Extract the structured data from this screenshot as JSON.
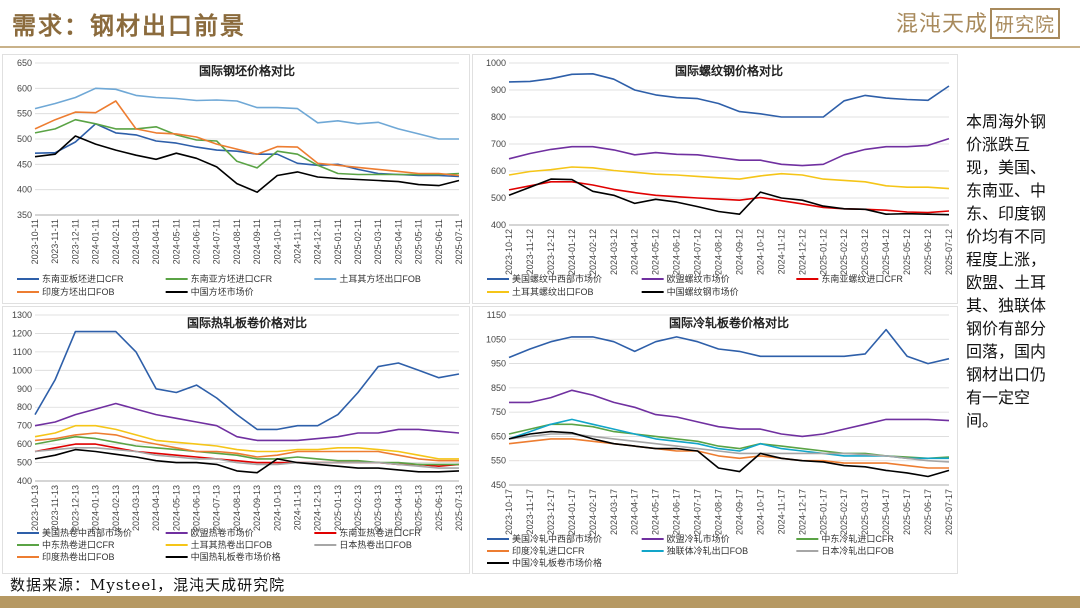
{
  "header": {
    "title": "需求：钢材出口前景",
    "logo_main": "混沌天成",
    "logo_boxed": "研究院"
  },
  "side_note": "本周海外钢价涨跌互现，美国、东南亚、中东、印度钢价均有不同程度上涨，欧盟、土耳其、独联体钢价有部分回落，国内钢材出口仍有一定空间。",
  "source": "数据来源：Mysteel，混沌天成研究院",
  "chart_data": [
    {
      "type": "line",
      "title": "国际钢坯价格对比",
      "ylim": [
        350,
        650
      ],
      "yticks": [
        350,
        400,
        450,
        500,
        550,
        600,
        650
      ],
      "xticks": [
        "2023-10-11",
        "2023-11-11",
        "2023-12-11",
        "2024-01-11",
        "2024-02-11",
        "2024-03-11",
        "2024-04-11",
        "2024-05-11",
        "2024-06-11",
        "2024-07-11",
        "2024-08-11",
        "2024-09-11",
        "2024-10-11",
        "2024-11-11",
        "2024-12-11",
        "2025-01-11",
        "2025-02-11",
        "2025-03-11",
        "2025-04-11",
        "2025-05-11",
        "2025-06-11",
        "2025-07-11"
      ],
      "grid": true,
      "legend_position": "bottom",
      "series": [
        {
          "name": "东南亚板坯进口CFR",
          "color": "#2e5fa9",
          "values": [
            472,
            473,
            494,
            530,
            512,
            508,
            496,
            492,
            484,
            478,
            476,
            470,
            470,
            452,
            448,
            450,
            440,
            432,
            430,
            428,
            428,
            426
          ]
        },
        {
          "name": "东南亚方坯进口CFR",
          "color": "#5aa345",
          "values": [
            512,
            520,
            538,
            530,
            520,
            520,
            524,
            508,
            498,
            496,
            456,
            443,
            476,
            470,
            448,
            432,
            430,
            430,
            430,
            430,
            430,
            432
          ]
        },
        {
          "name": "土耳其方坯出口FOB",
          "color": "#6fa8d6",
          "values": [
            560,
            570,
            582,
            600,
            598,
            586,
            582,
            580,
            576,
            577,
            575,
            562,
            562,
            560,
            532,
            536,
            530,
            533,
            520,
            510,
            500,
            500
          ]
        },
        {
          "name": "印度方坯出口FOB",
          "color": "#ed7d31",
          "values": [
            520,
            538,
            553,
            552,
            575,
            520,
            512,
            510,
            504,
            490,
            480,
            470,
            485,
            484,
            452,
            448,
            444,
            440,
            436,
            432,
            432,
            428
          ]
        },
        {
          "name": "中国方坯市场价",
          "color": "#000000",
          "values": [
            465,
            470,
            506,
            490,
            478,
            468,
            460,
            472,
            462,
            445,
            412,
            395,
            428,
            435,
            425,
            422,
            420,
            418,
            416,
            410,
            408,
            418
          ]
        }
      ]
    },
    {
      "type": "line",
      "title": "国际螺纹钢价格对比",
      "ylim": [
        400,
        1000
      ],
      "yticks": [
        400,
        500,
        600,
        700,
        800,
        900,
        1000
      ],
      "xticks": [
        "2023-10-12",
        "2023-11-12",
        "2023-12-12",
        "2024-01-12",
        "2024-02-12",
        "2024-03-12",
        "2024-04-12",
        "2024-05-12",
        "2024-06-12",
        "2024-07-12",
        "2024-08-12",
        "2024-09-12",
        "2024-10-12",
        "2024-11-12",
        "2024-12-12",
        "2025-01-12",
        "2025-02-12",
        "2025-03-12",
        "2025-04-12",
        "2025-05-12",
        "2025-06-12",
        "2025-07-12"
      ],
      "grid": true,
      "legend_position": "bottom",
      "series": [
        {
          "name": "美国螺纹中西部市场价",
          "color": "#2e5fa9",
          "values": [
            930,
            932,
            942,
            958,
            960,
            940,
            900,
            882,
            872,
            868,
            850,
            820,
            812,
            800,
            800,
            800,
            860,
            880,
            870,
            865,
            862,
            915
          ]
        },
        {
          "name": "欧盟螺纹市场价",
          "color": "#7030a0",
          "values": [
            645,
            665,
            680,
            690,
            690,
            678,
            660,
            668,
            662,
            660,
            650,
            640,
            640,
            625,
            620,
            625,
            660,
            680,
            690,
            690,
            695,
            720
          ]
        },
        {
          "name": "东南亚螺纹进口CFR",
          "color": "#e00000",
          "values": [
            530,
            545,
            560,
            560,
            548,
            532,
            520,
            510,
            505,
            500,
            496,
            492,
            502,
            490,
            478,
            465,
            460,
            458,
            455,
            448,
            446,
            452
          ]
        },
        {
          "name": "土耳其螺纹出口FOB",
          "color": "#f5c518",
          "values": [
            585,
            598,
            605,
            615,
            612,
            602,
            595,
            588,
            585,
            580,
            575,
            570,
            582,
            590,
            585,
            570,
            565,
            560,
            545,
            540,
            540,
            535
          ]
        },
        {
          "name": "中国螺纹钢市场价",
          "color": "#000000",
          "values": [
            510,
            540,
            570,
            568,
            525,
            510,
            480,
            495,
            485,
            468,
            450,
            440,
            522,
            500,
            492,
            470,
            460,
            458,
            440,
            442,
            440,
            438
          ]
        }
      ]
    },
    {
      "type": "line",
      "title": "国际热轧板卷价格对比",
      "ylim": [
        400,
        1300
      ],
      "yticks": [
        400,
        500,
        600,
        700,
        800,
        900,
        1000,
        1100,
        1200,
        1300
      ],
      "xticks": [
        "2023-10-13",
        "2023-11-13",
        "2023-12-13",
        "2024-01-13",
        "2024-02-13",
        "2024-03-13",
        "2024-04-13",
        "2024-05-13",
        "2024-06-13",
        "2024-07-13",
        "2024-08-13",
        "2024-09-13",
        "2024-10-13",
        "2024-11-13",
        "2024-12-13",
        "2025-01-13",
        "2025-02-13",
        "2025-03-13",
        "2025-04-13",
        "2025-05-13",
        "2025-06-13",
        "2025-07-13"
      ],
      "grid": true,
      "legend_position": "bottom",
      "series": [
        {
          "name": "美国热卷中西部市场价",
          "color": "#2e5fa9",
          "values": [
            760,
            950,
            1210,
            1210,
            1210,
            1100,
            900,
            880,
            920,
            850,
            760,
            680,
            680,
            700,
            700,
            760,
            880,
            1020,
            1040,
            1000,
            960,
            980
          ]
        },
        {
          "name": "欧盟热卷市场价",
          "color": "#7030a0",
          "values": [
            700,
            720,
            760,
            790,
            820,
            790,
            760,
            740,
            720,
            700,
            640,
            620,
            620,
            620,
            630,
            640,
            660,
            660,
            680,
            680,
            670,
            660
          ]
        },
        {
          "name": "东南亚热卷进口CFR",
          "color": "#e00000",
          "values": [
            560,
            580,
            600,
            600,
            580,
            560,
            550,
            540,
            530,
            520,
            510,
            500,
            500,
            500,
            500,
            500,
            500,
            500,
            490,
            490,
            480,
            490
          ]
        },
        {
          "name": "中东热卷进口CFR",
          "color": "#5aa345",
          "values": [
            600,
            620,
            640,
            630,
            610,
            590,
            580,
            570,
            560,
            550,
            540,
            520,
            520,
            530,
            520,
            510,
            510,
            500,
            500,
            490,
            490,
            490
          ]
        },
        {
          "name": "土耳其热卷出口FOB",
          "color": "#f5c518",
          "values": [
            640,
            660,
            700,
            700,
            680,
            650,
            620,
            610,
            600,
            590,
            570,
            560,
            560,
            570,
            570,
            580,
            580,
            570,
            560,
            540,
            520,
            520
          ]
        },
        {
          "name": "日本热卷出口FOB",
          "color": "#a6a6a6",
          "values": [
            560,
            570,
            580,
            580,
            570,
            560,
            540,
            530,
            520,
            520,
            500,
            490,
            490,
            500,
            500,
            500,
            500,
            500,
            490,
            480,
            470,
            470
          ]
        },
        {
          "name": "印度热卷出口FOB",
          "color": "#ed7d31",
          "values": [
            620,
            630,
            650,
            660,
            650,
            620,
            600,
            580,
            560,
            560,
            550,
            530,
            540,
            560,
            560,
            560,
            560,
            560,
            540,
            520,
            510,
            510
          ]
        },
        {
          "name": "中国热轧板卷市场价格",
          "color": "#000000",
          "values": [
            520,
            540,
            570,
            560,
            545,
            530,
            510,
            500,
            500,
            490,
            455,
            445,
            520,
            500,
            490,
            480,
            470,
            470,
            460,
            450,
            450,
            455
          ]
        }
      ]
    },
    {
      "type": "line",
      "title": "国际冷轧板卷价格对比",
      "ylim": [
        450,
        1150
      ],
      "yticks": [
        450,
        550,
        650,
        750,
        850,
        950,
        1050,
        1150
      ],
      "xticks": [
        "2023-10-17",
        "2023-11-17",
        "2023-12-17",
        "2024-01-17",
        "2024-02-17",
        "2024-03-17",
        "2024-04-17",
        "2024-05-17",
        "2024-06-17",
        "2024-07-17",
        "2024-08-17",
        "2024-09-17",
        "2024-10-17",
        "2024-11-17",
        "2024-12-17",
        "2025-01-17",
        "2025-02-17",
        "2025-03-17",
        "2025-04-17",
        "2025-05-17",
        "2025-06-17",
        "2025-07-17"
      ],
      "grid": true,
      "legend_position": "bottom",
      "series": [
        {
          "name": "美国冷轧中西部市场价",
          "color": "#2e5fa9",
          "values": [
            975,
            1010,
            1040,
            1060,
            1060,
            1040,
            1000,
            1040,
            1060,
            1040,
            1010,
            1000,
            980,
            980,
            980,
            980,
            980,
            990,
            1090,
            980,
            950,
            970
          ]
        },
        {
          "name": "欧盟冷轧市场价",
          "color": "#7030a0",
          "values": [
            790,
            790,
            810,
            840,
            820,
            790,
            770,
            740,
            730,
            710,
            690,
            680,
            680,
            660,
            650,
            660,
            680,
            700,
            720,
            720,
            720,
            715
          ]
        },
        {
          "name": "中东冷轧进口CFR",
          "color": "#5aa345",
          "values": [
            660,
            680,
            700,
            700,
            690,
            670,
            660,
            650,
            640,
            630,
            610,
            600,
            620,
            610,
            600,
            590,
            580,
            580,
            570,
            565,
            560,
            565
          ]
        },
        {
          "name": "印度冷轧进口CFR",
          "color": "#ed7d31",
          "values": [
            620,
            630,
            640,
            640,
            630,
            620,
            610,
            600,
            590,
            590,
            570,
            560,
            570,
            560,
            550,
            550,
            540,
            540,
            540,
            530,
            520,
            520
          ]
        },
        {
          "name": "独联体冷轧出口FOB",
          "color": "#12a5c9",
          "values": [
            640,
            670,
            700,
            720,
            700,
            680,
            660,
            640,
            630,
            620,
            600,
            590,
            620,
            600,
            590,
            580,
            570,
            570,
            570,
            560,
            560,
            560
          ]
        },
        {
          "name": "日本冷轧出口FOB",
          "color": "#a6a6a6",
          "values": [
            640,
            650,
            660,
            660,
            650,
            640,
            630,
            620,
            610,
            600,
            590,
            580,
            580,
            580,
            580,
            580,
            580,
            575,
            570,
            560,
            550,
            545
          ]
        },
        {
          "name": "中国冷轧板卷市场价格",
          "color": "#000000",
          "values": [
            640,
            660,
            670,
            665,
            640,
            620,
            610,
            600,
            600,
            590,
            520,
            505,
            580,
            560,
            550,
            545,
            530,
            525,
            510,
            500,
            485,
            510
          ]
        }
      ]
    }
  ]
}
